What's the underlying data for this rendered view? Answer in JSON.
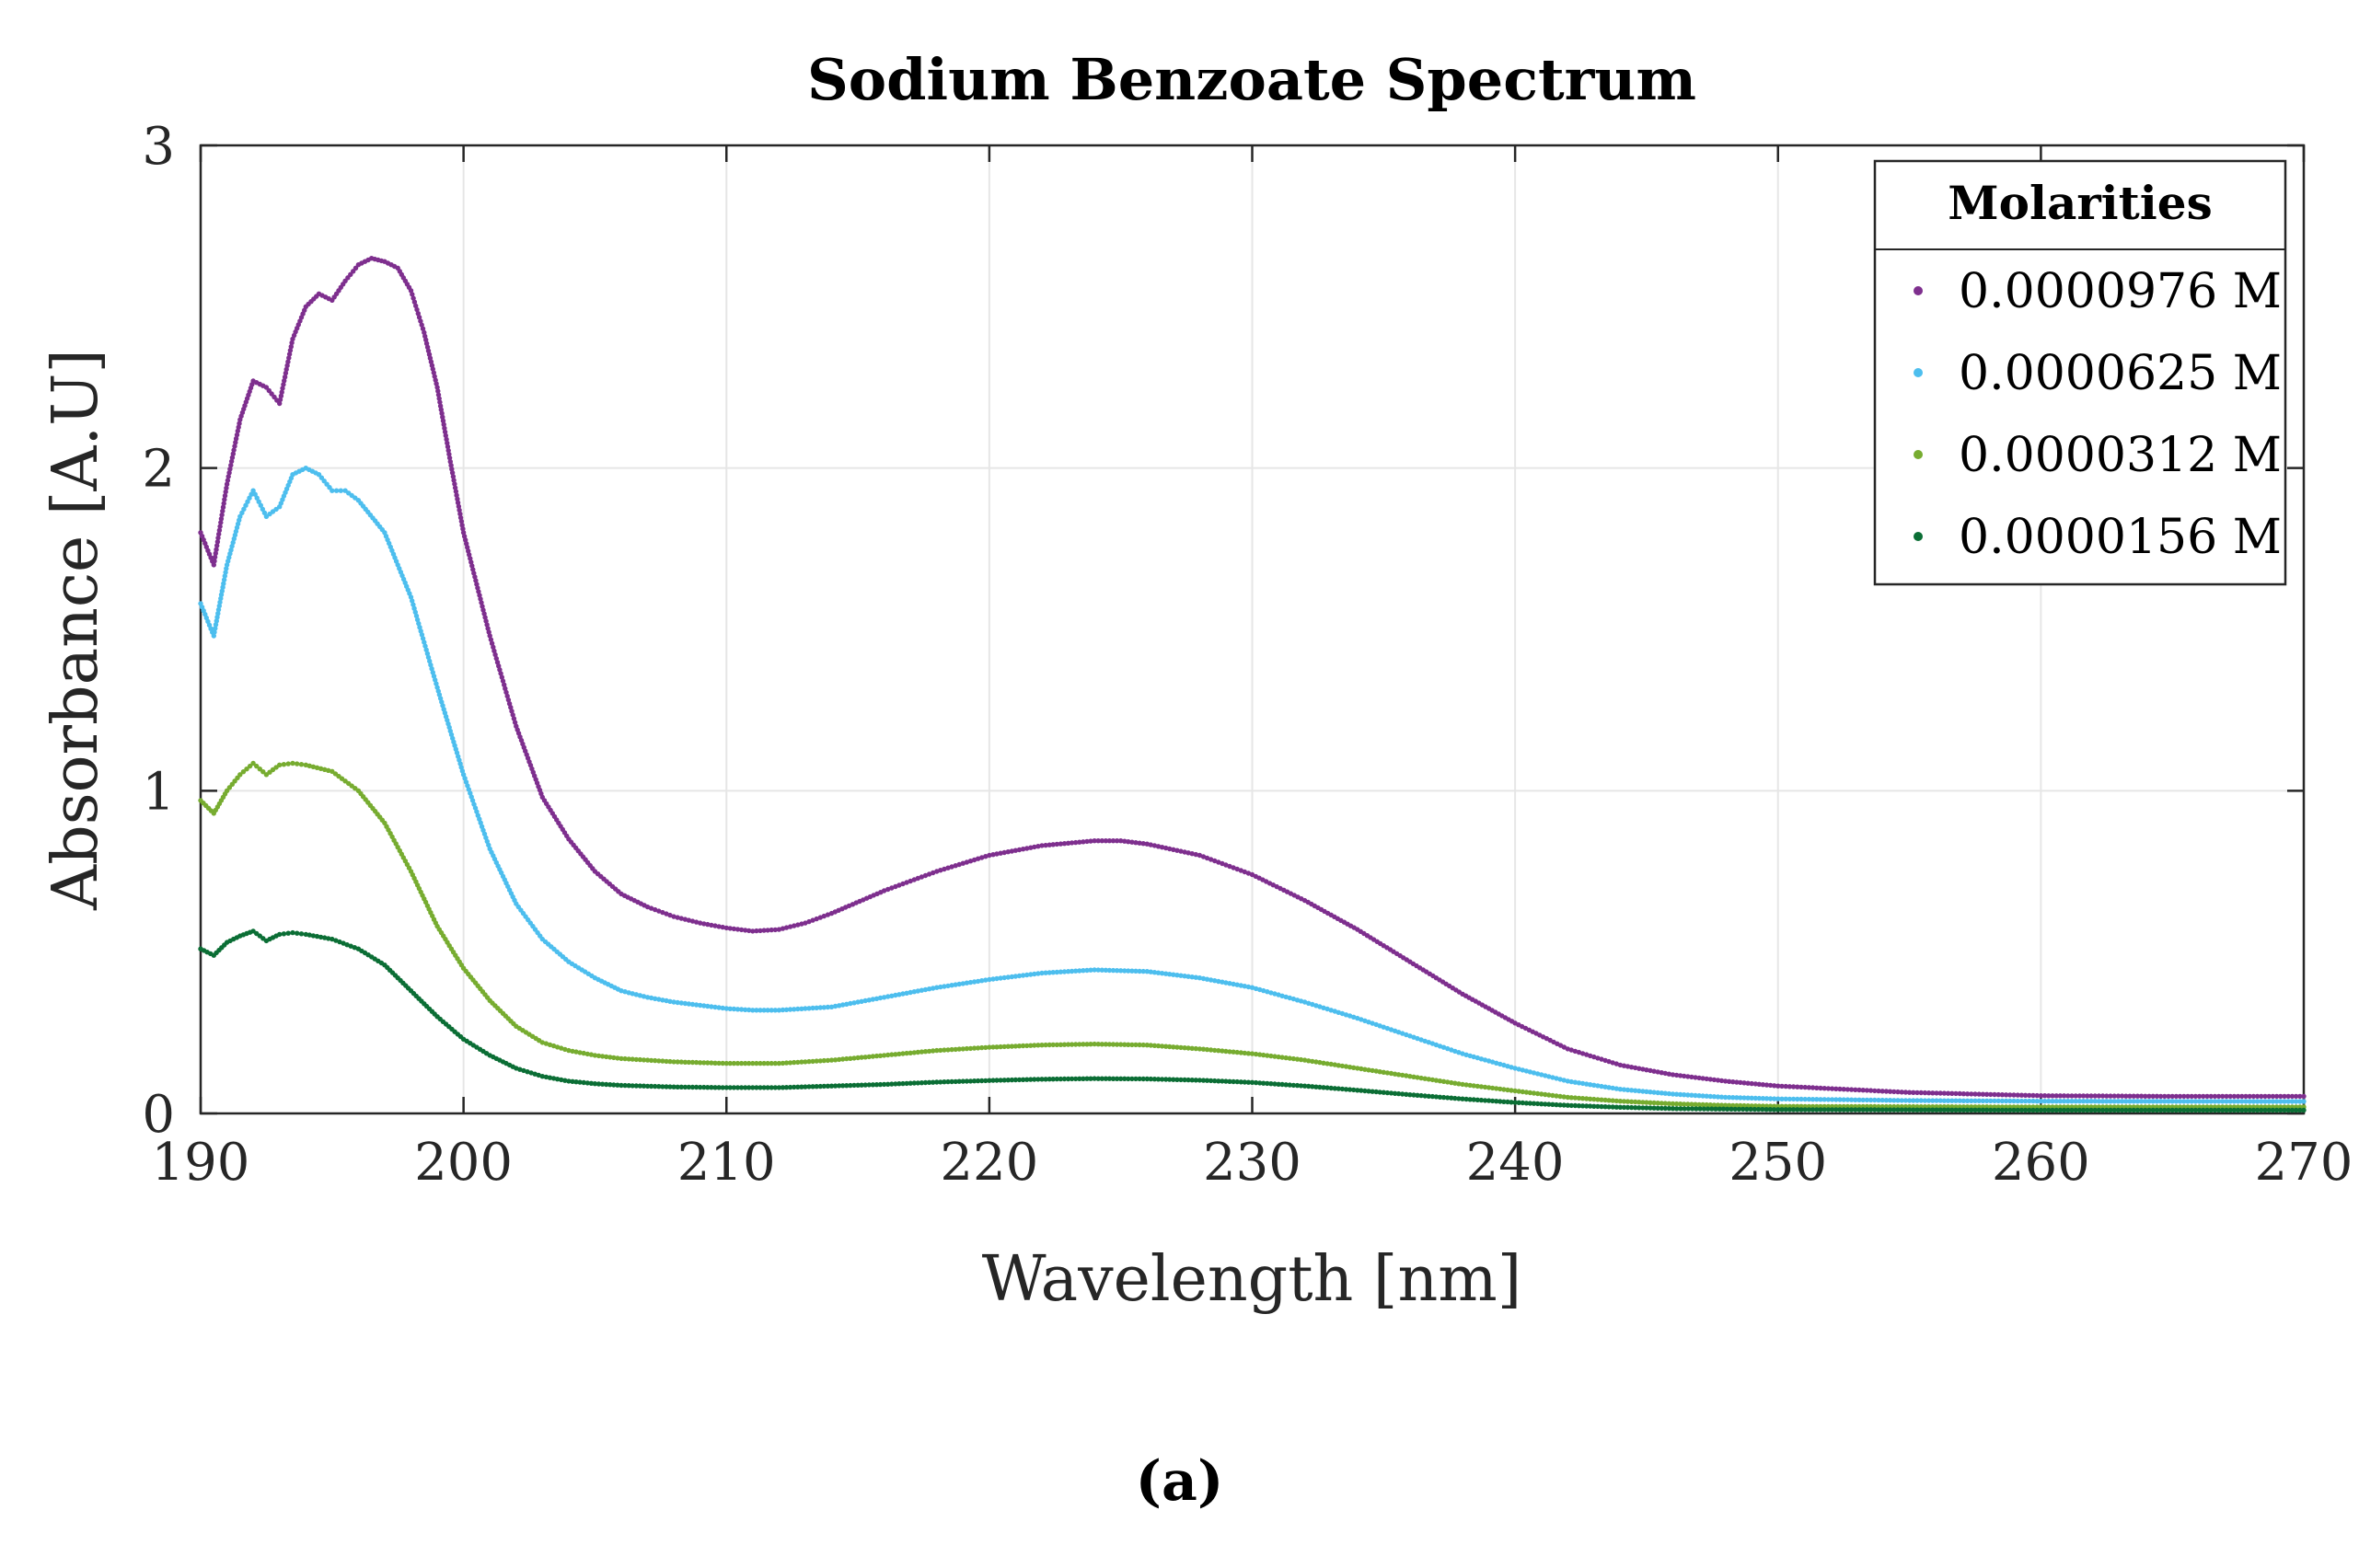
{
  "chart_data": {
    "type": "scatter",
    "title": "Sodium Benzoate Spectrum",
    "xlabel": "Wavelength [nm]",
    "ylabel": "Absorbance [A.U]",
    "xlim": [
      190,
      270
    ],
    "ylim": [
      0,
      3
    ],
    "xticks": [
      190,
      200,
      210,
      220,
      230,
      240,
      250,
      260,
      270
    ],
    "yticks": [
      0,
      1,
      2,
      3
    ],
    "grid": true,
    "legend": {
      "title": "Molarities",
      "position": "top-right"
    },
    "series": [
      {
        "name": "0.0000976 M",
        "color": "#7e2f8e",
        "points": [
          [
            190,
            1.8
          ],
          [
            190.5,
            1.7
          ],
          [
            191,
            1.95
          ],
          [
            191.5,
            2.15
          ],
          [
            192,
            2.27
          ],
          [
            192.5,
            2.25
          ],
          [
            193,
            2.2
          ],
          [
            193.5,
            2.4
          ],
          [
            194,
            2.5
          ],
          [
            194.5,
            2.54
          ],
          [
            195,
            2.52
          ],
          [
            195.5,
            2.58
          ],
          [
            196,
            2.63
          ],
          [
            196.5,
            2.65
          ],
          [
            197,
            2.64
          ],
          [
            197.5,
            2.62
          ],
          [
            198,
            2.55
          ],
          [
            198.5,
            2.42
          ],
          [
            199,
            2.25
          ],
          [
            199.5,
            2.02
          ],
          [
            200,
            1.8
          ],
          [
            201,
            1.48
          ],
          [
            202,
            1.2
          ],
          [
            203,
            0.98
          ],
          [
            204,
            0.85
          ],
          [
            205,
            0.75
          ],
          [
            206,
            0.68
          ],
          [
            207,
            0.64
          ],
          [
            208,
            0.61
          ],
          [
            209,
            0.59
          ],
          [
            210,
            0.575
          ],
          [
            211,
            0.565
          ],
          [
            212,
            0.57
          ],
          [
            213,
            0.59
          ],
          [
            214,
            0.62
          ],
          [
            216,
            0.69
          ],
          [
            218,
            0.75
          ],
          [
            220,
            0.8
          ],
          [
            222,
            0.83
          ],
          [
            224,
            0.845
          ],
          [
            225,
            0.845
          ],
          [
            226,
            0.835
          ],
          [
            228,
            0.8
          ],
          [
            230,
            0.74
          ],
          [
            232,
            0.66
          ],
          [
            234,
            0.57
          ],
          [
            236,
            0.47
          ],
          [
            238,
            0.37
          ],
          [
            240,
            0.28
          ],
          [
            242,
            0.2
          ],
          [
            244,
            0.15
          ],
          [
            246,
            0.12
          ],
          [
            248,
            0.1
          ],
          [
            250,
            0.085
          ],
          [
            255,
            0.065
          ],
          [
            260,
            0.055
          ],
          [
            265,
            0.053
          ],
          [
            270,
            0.053
          ]
        ]
      },
      {
        "name": "0.0000625 M",
        "color": "#4dbeee",
        "points": [
          [
            190,
            1.58
          ],
          [
            190.5,
            1.48
          ],
          [
            191,
            1.7
          ],
          [
            191.5,
            1.85
          ],
          [
            192,
            1.93
          ],
          [
            192.5,
            1.85
          ],
          [
            193,
            1.88
          ],
          [
            193.5,
            1.98
          ],
          [
            194,
            2.0
          ],
          [
            194.5,
            1.98
          ],
          [
            195,
            1.93
          ],
          [
            195.5,
            1.93
          ],
          [
            196,
            1.9
          ],
          [
            197,
            1.8
          ],
          [
            198,
            1.6
          ],
          [
            199,
            1.32
          ],
          [
            200,
            1.05
          ],
          [
            201,
            0.82
          ],
          [
            202,
            0.65
          ],
          [
            203,
            0.54
          ],
          [
            204,
            0.47
          ],
          [
            205,
            0.42
          ],
          [
            206,
            0.38
          ],
          [
            207,
            0.36
          ],
          [
            208,
            0.345
          ],
          [
            209,
            0.335
          ],
          [
            210,
            0.325
          ],
          [
            211,
            0.32
          ],
          [
            212,
            0.32
          ],
          [
            214,
            0.33
          ],
          [
            216,
            0.36
          ],
          [
            218,
            0.39
          ],
          [
            220,
            0.415
          ],
          [
            222,
            0.435
          ],
          [
            224,
            0.445
          ],
          [
            226,
            0.44
          ],
          [
            228,
            0.42
          ],
          [
            230,
            0.39
          ],
          [
            232,
            0.345
          ],
          [
            234,
            0.295
          ],
          [
            236,
            0.24
          ],
          [
            238,
            0.185
          ],
          [
            240,
            0.14
          ],
          [
            242,
            0.1
          ],
          [
            244,
            0.075
          ],
          [
            246,
            0.06
          ],
          [
            248,
            0.05
          ],
          [
            250,
            0.045
          ],
          [
            255,
            0.04
          ],
          [
            260,
            0.038
          ],
          [
            270,
            0.037
          ]
        ]
      },
      {
        "name": "0.0000312 M",
        "color": "#77ac30",
        "points": [
          [
            190,
            0.97
          ],
          [
            190.5,
            0.93
          ],
          [
            191,
            1.0
          ],
          [
            191.5,
            1.05
          ],
          [
            192,
            1.085
          ],
          [
            192.5,
            1.05
          ],
          [
            193,
            1.08
          ],
          [
            193.5,
            1.085
          ],
          [
            194,
            1.08
          ],
          [
            195,
            1.06
          ],
          [
            196,
            1.0
          ],
          [
            197,
            0.9
          ],
          [
            198,
            0.75
          ],
          [
            199,
            0.58
          ],
          [
            200,
            0.45
          ],
          [
            201,
            0.35
          ],
          [
            202,
            0.27
          ],
          [
            203,
            0.22
          ],
          [
            204,
            0.195
          ],
          [
            205,
            0.18
          ],
          [
            206,
            0.17
          ],
          [
            208,
            0.16
          ],
          [
            210,
            0.155
          ],
          [
            212,
            0.155
          ],
          [
            214,
            0.165
          ],
          [
            216,
            0.18
          ],
          [
            218,
            0.195
          ],
          [
            220,
            0.205
          ],
          [
            222,
            0.212
          ],
          [
            224,
            0.215
          ],
          [
            226,
            0.212
          ],
          [
            228,
            0.2
          ],
          [
            230,
            0.185
          ],
          [
            232,
            0.165
          ],
          [
            234,
            0.14
          ],
          [
            236,
            0.115
          ],
          [
            238,
            0.09
          ],
          [
            240,
            0.07
          ],
          [
            242,
            0.05
          ],
          [
            244,
            0.038
          ],
          [
            246,
            0.03
          ],
          [
            248,
            0.025
          ],
          [
            250,
            0.022
          ],
          [
            260,
            0.02
          ],
          [
            270,
            0.02
          ]
        ]
      },
      {
        "name": "0.0000156 M",
        "color": "#0b6e35",
        "points": [
          [
            190,
            0.51
          ],
          [
            190.5,
            0.49
          ],
          [
            191,
            0.53
          ],
          [
            191.5,
            0.55
          ],
          [
            192,
            0.565
          ],
          [
            192.5,
            0.535
          ],
          [
            193,
            0.555
          ],
          [
            193.5,
            0.56
          ],
          [
            194,
            0.555
          ],
          [
            195,
            0.54
          ],
          [
            196,
            0.51
          ],
          [
            197,
            0.46
          ],
          [
            198,
            0.38
          ],
          [
            199,
            0.3
          ],
          [
            200,
            0.23
          ],
          [
            201,
            0.18
          ],
          [
            202,
            0.14
          ],
          [
            203,
            0.115
          ],
          [
            204,
            0.1
          ],
          [
            205,
            0.092
          ],
          [
            206,
            0.087
          ],
          [
            208,
            0.082
          ],
          [
            210,
            0.08
          ],
          [
            212,
            0.08
          ],
          [
            214,
            0.085
          ],
          [
            216,
            0.09
          ],
          [
            218,
            0.097
          ],
          [
            220,
            0.102
          ],
          [
            222,
            0.106
          ],
          [
            224,
            0.108
          ],
          [
            226,
            0.107
          ],
          [
            228,
            0.103
          ],
          [
            230,
            0.096
          ],
          [
            232,
            0.085
          ],
          [
            234,
            0.072
          ],
          [
            236,
            0.058
          ],
          [
            238,
            0.045
          ],
          [
            240,
            0.034
          ],
          [
            242,
            0.025
          ],
          [
            244,
            0.019
          ],
          [
            246,
            0.015
          ],
          [
            250,
            0.012
          ],
          [
            260,
            0.01
          ],
          [
            270,
            0.01
          ]
        ]
      }
    ]
  },
  "caption": "(a)"
}
